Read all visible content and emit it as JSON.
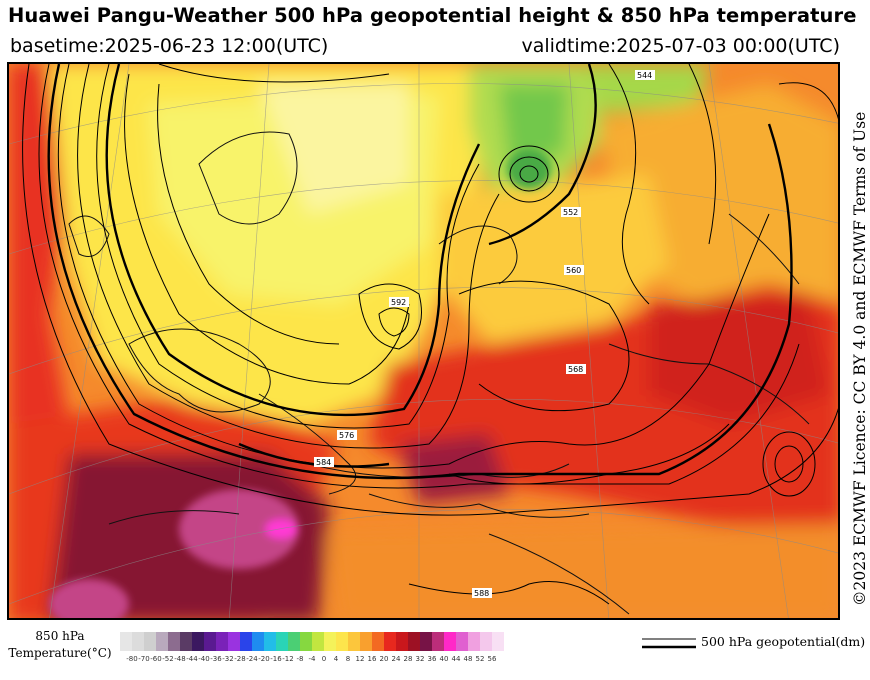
{
  "title": "Huawei Pangu-Weather 500 hPa geopotential height & 850 hPa temperature",
  "basetime": "basetime:2025-06-23 12:00(UTC)",
  "validtime": "validtime:2025-07-03 00:00(UTC)",
  "credit": "©2023 ECMWF Licence: CC BY 4.0 and ECMWF Terms of Use",
  "legend": {
    "title_line1": "850 hPa",
    "title_line2": "Temperature(°C)",
    "contour_label": "500 hPa geopotential(dm)",
    "ticks": [
      "-80",
      "-70",
      "-60",
      "-52",
      "-48",
      "-44",
      "-40",
      "-36",
      "-32",
      "-28",
      "-24",
      "-20",
      "-16",
      "-12",
      "-8",
      "-4",
      "0",
      "4",
      "8",
      "12",
      "16",
      "20",
      "24",
      "28",
      "32",
      "36",
      "40",
      "44",
      "48",
      "52",
      "56"
    ],
    "colors": [
      "#e6e6e6",
      "#dcdcdc",
      "#cfcfcf",
      "#b9a9bd",
      "#8c6c8f",
      "#5a3b65",
      "#3b1860",
      "#5a1a91",
      "#7a22b8",
      "#9a33e0",
      "#2a44ea",
      "#1f8cf0",
      "#22bde8",
      "#2ad4b6",
      "#4bcf74",
      "#86d840",
      "#c2e640",
      "#f4f25a",
      "#fde54c",
      "#fcc63c",
      "#f9a02e",
      "#f36a22",
      "#e8281e",
      "#c9171c",
      "#9d1124",
      "#771346",
      "#bb2d7a",
      "#ff28c8",
      "#e060d0",
      "#f0a0e0",
      "#f4c8ec",
      "#f8e0f4"
    ]
  },
  "map": {
    "contour_labels": [
      "544",
      "552",
      "560",
      "568",
      "576",
      "584",
      "588",
      "592"
    ],
    "temperature_field": "850 hPa temperature over Europe, North Africa and western Asia"
  }
}
